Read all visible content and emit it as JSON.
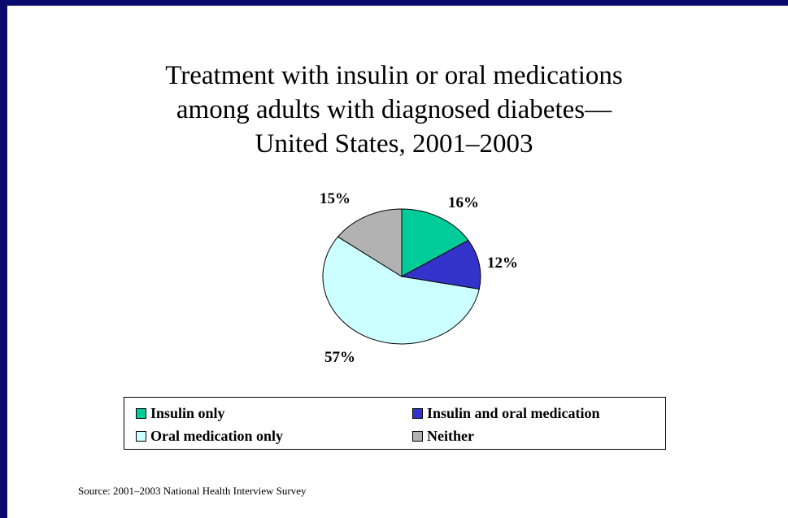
{
  "chart_data": {
    "type": "pie",
    "title_lines": [
      "Treatment with insulin or oral medications",
      "among adults with diagnosed diabetes—",
      "United States, 2001–2003"
    ],
    "slices": [
      {
        "name": "Insulin only",
        "value": 16,
        "label": "16%",
        "color": "#00cc99"
      },
      {
        "name": "Insulin and oral medication",
        "value": 12,
        "label": "12%",
        "color": "#3333cc"
      },
      {
        "name": "Oral medication only",
        "value": 57,
        "label": "57%",
        "color": "#ccffff"
      },
      {
        "name": "Neither",
        "value": 15,
        "label": "15%",
        "color": "#b2b2b2"
      }
    ],
    "legend_placement": "bottom"
  },
  "source": "Source: 2001–2003 National Health Interview Survey"
}
